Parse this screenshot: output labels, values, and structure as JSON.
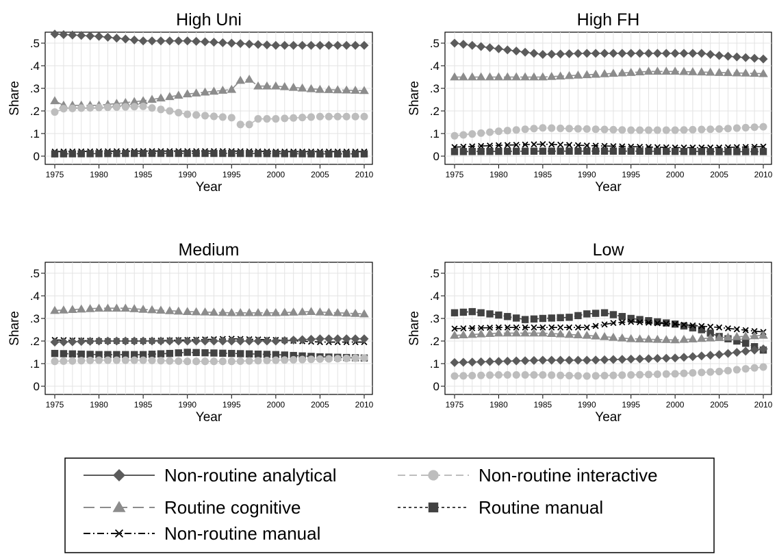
{
  "chart_data": [
    {
      "type": "line",
      "title": "High Uni",
      "xlabel": "Year",
      "ylabel": "Share",
      "xlim": [
        1975,
        2010
      ],
      "ylim": [
        0,
        0.5
      ],
      "xticks": [
        "1975",
        "1980",
        "1985",
        "1990",
        "1995",
        "2000",
        "2005",
        "2010"
      ],
      "yticks": [
        "0",
        ".1",
        ".2",
        ".3",
        ".4",
        ".5"
      ],
      "grid": true,
      "series": [
        {
          "key": "nra",
          "points": [
            [
              1975,
              0.54
            ],
            [
              1980,
              0.53
            ],
            [
              1985,
              0.51
            ],
            [
              1990,
              0.51
            ],
            [
              1995,
              0.5
            ],
            [
              2000,
              0.49
            ],
            [
              2005,
              0.49
            ],
            [
              2010,
              0.49
            ]
          ]
        },
        {
          "key": "rc",
          "points": [
            [
              1975,
              0.245
            ],
            [
              1976,
              0.225
            ],
            [
              1980,
              0.225
            ],
            [
              1985,
              0.245
            ],
            [
              1990,
              0.275
            ],
            [
              1995,
              0.295
            ],
            [
              1996,
              0.335
            ],
            [
              1997,
              0.34
            ],
            [
              1998,
              0.31
            ],
            [
              2000,
              0.31
            ],
            [
              2005,
              0.295
            ],
            [
              2010,
              0.29
            ]
          ]
        },
        {
          "key": "nri",
          "points": [
            [
              1975,
              0.195
            ],
            [
              1976,
              0.21
            ],
            [
              1980,
              0.215
            ],
            [
              1985,
              0.22
            ],
            [
              1988,
              0.2
            ],
            [
              1990,
              0.185
            ],
            [
              1995,
              0.17
            ],
            [
              1996,
              0.14
            ],
            [
              1997,
              0.14
            ],
            [
              1998,
              0.165
            ],
            [
              2000,
              0.165
            ],
            [
              2005,
              0.175
            ],
            [
              2010,
              0.175
            ]
          ]
        },
        {
          "key": "nrm",
          "points": [
            [
              1975,
              0.02
            ],
            [
              1985,
              0.022
            ],
            [
              1995,
              0.022
            ],
            [
              2000,
              0.02
            ],
            [
              2010,
              0.02
            ]
          ]
        },
        {
          "key": "rm",
          "points": [
            [
              1975,
              0.01
            ],
            [
              1985,
              0.012
            ],
            [
              1995,
              0.012
            ],
            [
              2005,
              0.01
            ],
            [
              2010,
              0.01
            ]
          ]
        }
      ]
    },
    {
      "type": "line",
      "title": "High FH",
      "xlabel": "Year",
      "ylabel": "Share",
      "xlim": [
        1975,
        2010
      ],
      "ylim": [
        0,
        0.5
      ],
      "xticks": [
        "1975",
        "1980",
        "1985",
        "1990",
        "1995",
        "2000",
        "2005",
        "2010"
      ],
      "yticks": [
        "0",
        ".1",
        ".2",
        ".3",
        ".4",
        ".5"
      ],
      "grid": true,
      "series": [
        {
          "key": "nra",
          "points": [
            [
              1975,
              0.5
            ],
            [
              1980,
              0.475
            ],
            [
              1985,
              0.45
            ],
            [
              1990,
              0.455
            ],
            [
              1995,
              0.455
            ],
            [
              2000,
              0.455
            ],
            [
              2003,
              0.455
            ],
            [
              2005,
              0.445
            ],
            [
              2010,
              0.43
            ]
          ]
        },
        {
          "key": "rc",
          "points": [
            [
              1975,
              0.35
            ],
            [
              1980,
              0.35
            ],
            [
              1985,
              0.35
            ],
            [
              1990,
              0.36
            ],
            [
              1995,
              0.37
            ],
            [
              1997,
              0.375
            ],
            [
              2000,
              0.375
            ],
            [
              2005,
              0.37
            ],
            [
              2010,
              0.365
            ]
          ]
        },
        {
          "key": "nri",
          "points": [
            [
              1975,
              0.09
            ],
            [
              1980,
              0.11
            ],
            [
              1985,
              0.125
            ],
            [
              1990,
              0.12
            ],
            [
              1995,
              0.115
            ],
            [
              2000,
              0.115
            ],
            [
              2005,
              0.12
            ],
            [
              2010,
              0.13
            ]
          ]
        },
        {
          "key": "nrm",
          "points": [
            [
              1975,
              0.04
            ],
            [
              1980,
              0.048
            ],
            [
              1985,
              0.053
            ],
            [
              1990,
              0.047
            ],
            [
              1995,
              0.042
            ],
            [
              2000,
              0.038
            ],
            [
              2005,
              0.038
            ],
            [
              2010,
              0.042
            ]
          ]
        },
        {
          "key": "rm",
          "points": [
            [
              1975,
              0.02
            ],
            [
              1985,
              0.022
            ],
            [
              1995,
              0.022
            ],
            [
              2005,
              0.02
            ],
            [
              2010,
              0.02
            ]
          ]
        }
      ]
    },
    {
      "type": "line",
      "title": "Medium",
      "xlabel": "Year",
      "ylabel": "Share",
      "xlim": [
        1975,
        2010
      ],
      "ylim": [
        0,
        0.5
      ],
      "xticks": [
        "1975",
        "1980",
        "1985",
        "1990",
        "1995",
        "2000",
        "2005",
        "2010"
      ],
      "yticks": [
        "0",
        ".1",
        ".2",
        ".3",
        ".4",
        ".5"
      ],
      "grid": true,
      "series": [
        {
          "key": "rc",
          "points": [
            [
              1975,
              0.335
            ],
            [
              1980,
              0.345
            ],
            [
              1983,
              0.345
            ],
            [
              1985,
              0.34
            ],
            [
              1990,
              0.33
            ],
            [
              1995,
              0.325
            ],
            [
              2000,
              0.325
            ],
            [
              2004,
              0.33
            ],
            [
              2010,
              0.32
            ]
          ]
        },
        {
          "key": "nrm",
          "points": [
            [
              1975,
              0.205
            ],
            [
              1980,
              0.2
            ],
            [
              1985,
              0.2
            ],
            [
              1990,
              0.205
            ],
            [
              1995,
              0.21
            ],
            [
              2000,
              0.205
            ],
            [
              2005,
              0.195
            ],
            [
              2010,
              0.195
            ]
          ]
        },
        {
          "key": "nra",
          "points": [
            [
              1975,
              0.195
            ],
            [
              1980,
              0.2
            ],
            [
              1985,
              0.2
            ],
            [
              1990,
              0.2
            ],
            [
              1995,
              0.2
            ],
            [
              2000,
              0.2
            ],
            [
              2005,
              0.21
            ],
            [
              2010,
              0.21
            ]
          ]
        },
        {
          "key": "rm",
          "points": [
            [
              1975,
              0.145
            ],
            [
              1980,
              0.14
            ],
            [
              1985,
              0.14
            ],
            [
              1988,
              0.145
            ],
            [
              1990,
              0.15
            ],
            [
              1995,
              0.145
            ],
            [
              2000,
              0.14
            ],
            [
              2005,
              0.13
            ],
            [
              2010,
              0.125
            ]
          ]
        },
        {
          "key": "nri",
          "points": [
            [
              1975,
              0.11
            ],
            [
              1980,
              0.115
            ],
            [
              1985,
              0.115
            ],
            [
              1990,
              0.11
            ],
            [
              1995,
              0.11
            ],
            [
              2000,
              0.115
            ],
            [
              2005,
              0.12
            ],
            [
              2010,
              0.125
            ]
          ]
        }
      ]
    },
    {
      "type": "line",
      "title": "Low",
      "xlabel": "Year",
      "ylabel": "Share",
      "xlim": [
        1975,
        2010
      ],
      "ylim": [
        0,
        0.5
      ],
      "xticks": [
        "1975",
        "1980",
        "1985",
        "1990",
        "1995",
        "2000",
        "2005",
        "2010"
      ],
      "yticks": [
        "0",
        ".1",
        ".2",
        ".3",
        ".4",
        ".5"
      ],
      "grid": true,
      "series": [
        {
          "key": "rm",
          "points": [
            [
              1975,
              0.325
            ],
            [
              1977,
              0.33
            ],
            [
              1980,
              0.315
            ],
            [
              1983,
              0.295
            ],
            [
              1985,
              0.3
            ],
            [
              1988,
              0.305
            ],
            [
              1990,
              0.32
            ],
            [
              1992,
              0.325
            ],
            [
              1995,
              0.3
            ],
            [
              2000,
              0.275
            ],
            [
              2003,
              0.25
            ],
            [
              2005,
              0.22
            ],
            [
              2008,
              0.19
            ],
            [
              2010,
              0.16
            ]
          ]
        },
        {
          "key": "nrm",
          "points": [
            [
              1975,
              0.255
            ],
            [
              1980,
              0.26
            ],
            [
              1985,
              0.26
            ],
            [
              1990,
              0.26
            ],
            [
              1993,
              0.28
            ],
            [
              1995,
              0.285
            ],
            [
              2000,
              0.275
            ],
            [
              2005,
              0.26
            ],
            [
              2010,
              0.24
            ]
          ]
        },
        {
          "key": "rc",
          "points": [
            [
              1975,
              0.225
            ],
            [
              1980,
              0.235
            ],
            [
              1985,
              0.235
            ],
            [
              1990,
              0.225
            ],
            [
              1995,
              0.21
            ],
            [
              2000,
              0.205
            ],
            [
              2005,
              0.215
            ],
            [
              2010,
              0.225
            ]
          ]
        },
        {
          "key": "nra",
          "points": [
            [
              1975,
              0.105
            ],
            [
              1980,
              0.11
            ],
            [
              1985,
              0.115
            ],
            [
              1990,
              0.115
            ],
            [
              1995,
              0.12
            ],
            [
              2000,
              0.125
            ],
            [
              2005,
              0.14
            ],
            [
              2010,
              0.165
            ]
          ]
        },
        {
          "key": "nri",
          "points": [
            [
              1975,
              0.045
            ],
            [
              1980,
              0.05
            ],
            [
              1985,
              0.05
            ],
            [
              1990,
              0.045
            ],
            [
              1995,
              0.05
            ],
            [
              2000,
              0.055
            ],
            [
              2005,
              0.065
            ],
            [
              2010,
              0.085
            ]
          ]
        }
      ]
    }
  ],
  "legend": {
    "placement": "bottom",
    "items": [
      {
        "key": "nra",
        "label": "Non-routine analytical",
        "marker": "diamond",
        "line": "solid",
        "color": "#5b5b5b"
      },
      {
        "key": "nri",
        "label": "Non-routine interactive",
        "marker": "circle",
        "line": "dash",
        "color": "#bdbdbd"
      },
      {
        "key": "rc",
        "label": "Routine cognitive",
        "marker": "triangle",
        "line": "longdash",
        "color": "#8c8c8c"
      },
      {
        "key": "rm",
        "label": "Routine manual",
        "marker": "square",
        "line": "shortdash",
        "color": "#424242"
      },
      {
        "key": "nrm",
        "label": "Non-routine manual",
        "marker": "x",
        "line": "dashdot",
        "color": "#000000"
      }
    ]
  }
}
